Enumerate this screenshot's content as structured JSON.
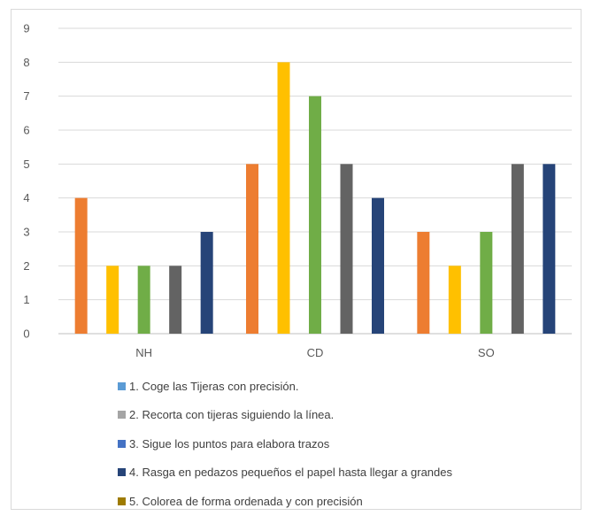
{
  "chart_data": {
    "type": "bar",
    "categories": [
      "NH",
      "CD",
      "SO"
    ],
    "ylim": [
      0,
      9
    ],
    "yticks": [
      0,
      1,
      2,
      3,
      4,
      5,
      6,
      7,
      8,
      9
    ],
    "grid": true,
    "series": [
      {
        "color": "#ED7D31",
        "values": [
          4,
          5,
          3
        ]
      },
      {
        "color": "#FFC000",
        "values": [
          2,
          8,
          2
        ]
      },
      {
        "color": "#70AD47",
        "values": [
          2,
          7,
          3
        ]
      },
      {
        "color": "#636363",
        "values": [
          2,
          5,
          5
        ]
      },
      {
        "color": "#264478",
        "values": [
          3,
          4,
          5
        ]
      }
    ],
    "legend": [
      {
        "label": "1. Coge las Tijeras con precisión.",
        "color": "#5B9BD5"
      },
      {
        "label": "2. Recorta con tijeras siguiendo la línea.",
        "color": "#A5A5A5"
      },
      {
        "label": "3. Sigue los puntos para elabora trazos",
        "color": "#4472C4"
      },
      {
        "label": "4. Rasga en pedazos pequeños el papel hasta llegar a grandes",
        "color": "#264478"
      },
      {
        "label": "5. Colorea de forma ordenada y con precisión",
        "color": "#9E7B00"
      }
    ],
    "legend_position": "bottom"
  }
}
